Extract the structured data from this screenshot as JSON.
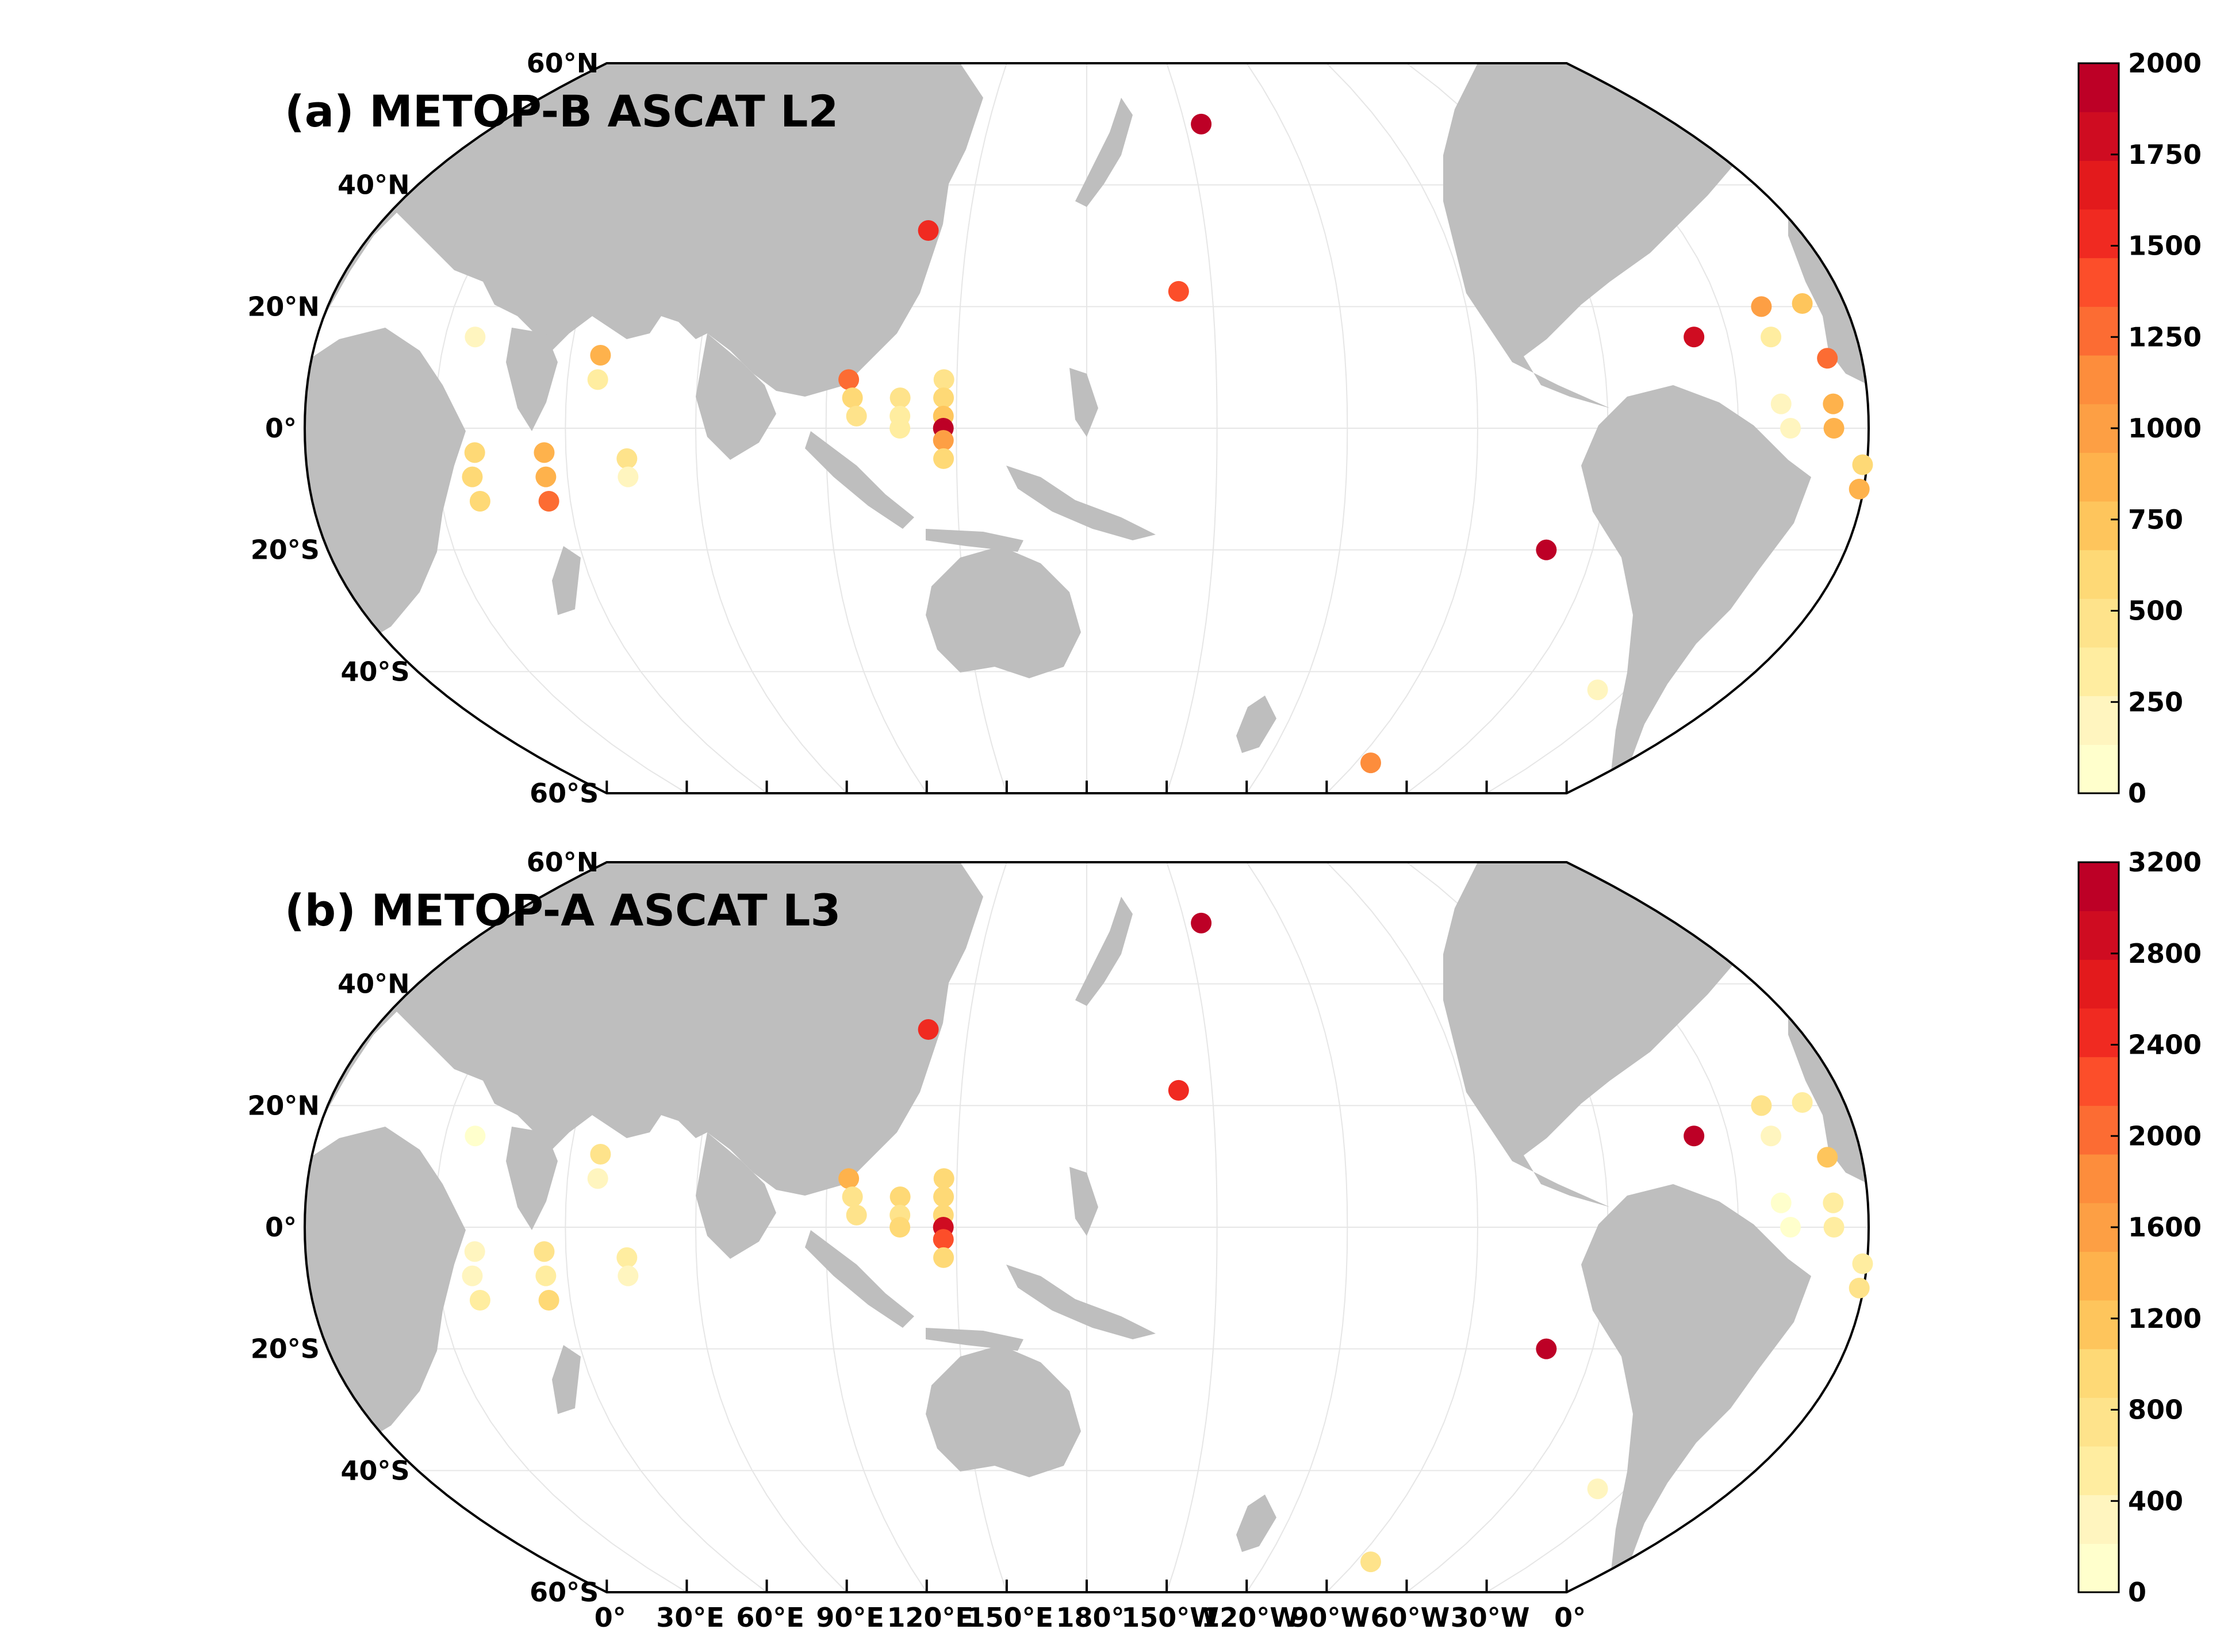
{
  "colors": {
    "land": "#bebebe",
    "ocean": "#ffffff",
    "frame": "#000000",
    "grid": "#e6e6e6",
    "colorbar": [
      "#ffffcc",
      "#fff5bf",
      "#ffeda0",
      "#fee38b",
      "#fed976",
      "#fec55c",
      "#feb24c",
      "#fd9f44",
      "#fd8d3c",
      "#fc6c33",
      "#fc4e2a",
      "#f02a21",
      "#e31a1c",
      "#cf0c21",
      "#bd0026"
    ]
  },
  "axes": {
    "lat_labels": [
      "60°N",
      "40°N",
      "20°N",
      "0°",
      "20°S",
      "40°S",
      "60°S"
    ],
    "lat_values": [
      60,
      40,
      20,
      0,
      -20,
      -40,
      -60
    ],
    "lon_labels": [
      "0°",
      "30°E",
      "60°E",
      "90°E",
      "120°E",
      "150°E",
      "180°",
      "150°W",
      "120°W",
      "90°W",
      "60°W",
      "30°W",
      "0°"
    ],
    "lon_values": [
      0,
      30,
      60,
      90,
      120,
      150,
      180,
      210,
      240,
      270,
      300,
      330,
      360
    ]
  },
  "panels": [
    {
      "title": "(a) METOP-B ASCAT L2",
      "colorbar": {
        "ticks": [
          "0",
          "250",
          "500",
          "750",
          "1000",
          "1250",
          "1500",
          "1750",
          "2000"
        ],
        "min": 0,
        "max": 2000
      },
      "points": [
        {
          "lon": 37,
          "lat": 15,
          "v": 150
        },
        {
          "lon": 39,
          "lat": -4,
          "v": 650
        },
        {
          "lon": 38,
          "lat": -8,
          "v": 600
        },
        {
          "lon": 39,
          "lat": -12,
          "v": 550
        },
        {
          "lon": 55,
          "lat": -4,
          "v": 850
        },
        {
          "lon": 55,
          "lat": -8,
          "v": 850
        },
        {
          "lon": 55,
          "lat": -12,
          "v": 1250
        },
        {
          "lon": 67,
          "lat": 12,
          "v": 800
        },
        {
          "lon": 67,
          "lat": 8,
          "v": 300
        },
        {
          "lon": 74,
          "lat": -5,
          "v": 400
        },
        {
          "lon": 74,
          "lat": -8,
          "v": 250
        },
        {
          "lon": 125,
          "lat": 8,
          "v": 1250
        },
        {
          "lon": 126,
          "lat": 5,
          "v": 650
        },
        {
          "lon": 127,
          "lat": 2,
          "v": 450
        },
        {
          "lon": 137,
          "lat": 5,
          "v": 400
        },
        {
          "lon": 137,
          "lat": 2,
          "v": 300
        },
        {
          "lon": 137,
          "lat": 0,
          "v": 350
        },
        {
          "lon": 147,
          "lat": 8,
          "v": 500
        },
        {
          "lon": 147,
          "lat": 5,
          "v": 550
        },
        {
          "lon": 147,
          "lat": 2,
          "v": 750
        },
        {
          "lon": 147,
          "lat": 0,
          "v": 2000
        },
        {
          "lon": 147,
          "lat": -2,
          "v": 1000
        },
        {
          "lon": 147,
          "lat": -5,
          "v": 650
        },
        {
          "lon": 140,
          "lat": 32.5,
          "v": 1550
        },
        {
          "lon": 202,
          "lat": 22.5,
          "v": 1350
        },
        {
          "lon": 215,
          "lat": 50,
          "v": 1950
        },
        {
          "lon": 275,
          "lat": -55,
          "v": 1150
        },
        {
          "lon": 289,
          "lat": -20,
          "v": 1950
        },
        {
          "lon": 322,
          "lat": -43,
          "v": 250
        },
        {
          "lon": 322,
          "lat": 15,
          "v": 1800
        },
        {
          "lon": 340,
          "lat": 20,
          "v": 1000
        },
        {
          "lon": 340,
          "lat": 15,
          "v": 350
        },
        {
          "lon": 340,
          "lat": 4,
          "v": 150
        },
        {
          "lon": 342,
          "lat": 0,
          "v": 150
        },
        {
          "lon": 350,
          "lat": 20.5,
          "v": 750
        },
        {
          "lon": 352,
          "lat": 11.5,
          "v": 1250
        },
        {
          "lon": 352,
          "lat": 4,
          "v": 900
        },
        {
          "lon": 352,
          "lat": 0,
          "v": 900
        },
        {
          "lon": 359,
          "lat": -6,
          "v": 650
        },
        {
          "lon": 359,
          "lat": -10,
          "v": 900
        }
      ]
    },
    {
      "title": "(b) METOP-A ASCAT L3",
      "colorbar": {
        "ticks": [
          "0",
          "400",
          "800",
          "1200",
          "1600",
          "2000",
          "2400",
          "2800",
          "3200"
        ],
        "min": 0,
        "max": 3200
      },
      "points": [
        {
          "lon": 37,
          "lat": 15,
          "v": 200
        },
        {
          "lon": 39,
          "lat": -4,
          "v": 400
        },
        {
          "lon": 38,
          "lat": -8,
          "v": 400
        },
        {
          "lon": 39,
          "lat": -12,
          "v": 500
        },
        {
          "lon": 55,
          "lat": -4,
          "v": 800
        },
        {
          "lon": 55,
          "lat": -8,
          "v": 500
        },
        {
          "lon": 55,
          "lat": -12,
          "v": 1000
        },
        {
          "lon": 67,
          "lat": 12,
          "v": 700
        },
        {
          "lon": 67,
          "lat": 8,
          "v": 250
        },
        {
          "lon": 74,
          "lat": -5,
          "v": 450
        },
        {
          "lon": 74,
          "lat": -8,
          "v": 300
        },
        {
          "lon": 125,
          "lat": 8,
          "v": 1400
        },
        {
          "lon": 126,
          "lat": 5,
          "v": 800
        },
        {
          "lon": 127,
          "lat": 2,
          "v": 800
        },
        {
          "lon": 137,
          "lat": 5,
          "v": 1000
        },
        {
          "lon": 137,
          "lat": 2,
          "v": 800
        },
        {
          "lon": 137,
          "lat": 0,
          "v": 900
        },
        {
          "lon": 147,
          "lat": 8,
          "v": 900
        },
        {
          "lon": 147,
          "lat": 5,
          "v": 900
        },
        {
          "lon": 147,
          "lat": 2,
          "v": 1000
        },
        {
          "lon": 147,
          "lat": 0,
          "v": 2800
        },
        {
          "lon": 147,
          "lat": -2,
          "v": 2200
        },
        {
          "lon": 147,
          "lat": -5,
          "v": 1000
        },
        {
          "lon": 140,
          "lat": 32.5,
          "v": 2400
        },
        {
          "lon": 202,
          "lat": 22.5,
          "v": 2500
        },
        {
          "lon": 215,
          "lat": 50,
          "v": 3100
        },
        {
          "lon": 275,
          "lat": -55,
          "v": 800
        },
        {
          "lon": 289,
          "lat": -20,
          "v": 3100
        },
        {
          "lon": 322,
          "lat": -43,
          "v": 300
        },
        {
          "lon": 322,
          "lat": 15,
          "v": 3000
        },
        {
          "lon": 340,
          "lat": 20,
          "v": 800
        },
        {
          "lon": 340,
          "lat": 15,
          "v": 400
        },
        {
          "lon": 340,
          "lat": 4,
          "v": 200
        },
        {
          "lon": 342,
          "lat": 0,
          "v": 200
        },
        {
          "lon": 350,
          "lat": 20.5,
          "v": 500
        },
        {
          "lon": 352,
          "lat": 11.5,
          "v": 1100
        },
        {
          "lon": 352,
          "lat": 4,
          "v": 600
        },
        {
          "lon": 352,
          "lat": 0,
          "v": 500
        },
        {
          "lon": 359,
          "lat": -6,
          "v": 600
        },
        {
          "lon": 359,
          "lat": -10,
          "v": 800
        }
      ]
    }
  ]
}
